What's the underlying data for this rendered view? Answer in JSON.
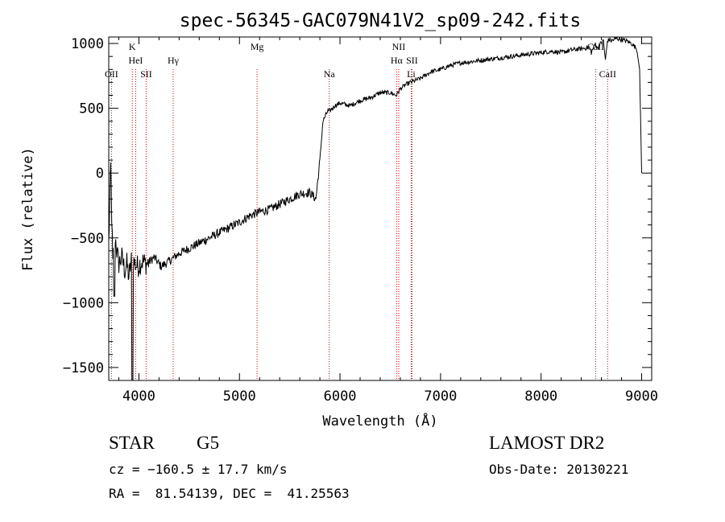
{
  "chart_data": {
    "type": "line",
    "title": "spec-56345-GAC079N41V2_sp09-242.fits",
    "xlabel": "Wavelength (Å)",
    "ylabel": "Flux (relative)",
    "xlim": [
      3700,
      9100
    ],
    "ylim": [
      -1600,
      1050
    ],
    "xticks": [
      4000,
      5000,
      6000,
      7000,
      8000,
      9000
    ],
    "yticks": [
      -1500,
      -1000,
      -500,
      0,
      500,
      1000
    ],
    "xtick_labels": [
      "4000",
      "5000",
      "6000",
      "7000",
      "8000",
      "9000"
    ],
    "ytick_labels": [
      "−1500",
      "−1000",
      "−500",
      "0",
      "500",
      "1000"
    ],
    "grid": false,
    "line_color": "#000000",
    "marker_color": "#cc0000",
    "series": [
      {
        "x": [
          3700,
          3720,
          3740,
          3760,
          3780,
          3800,
          3830,
          3860,
          3880,
          3900,
          3930,
          3960,
          3990,
          4030,
          4080,
          4150,
          4220,
          4300,
          4400,
          4500,
          4600,
          4700,
          4800,
          4900,
          5000,
          5100,
          5200,
          5300,
          5400,
          5500,
          5600,
          5700,
          5760,
          5800,
          5830,
          5860,
          5880,
          5900,
          5950,
          6000,
          6100,
          6200,
          6300,
          6400,
          6500,
          6560,
          6600,
          6650,
          6700,
          6800,
          6900,
          7000,
          7100,
          7200,
          7300,
          7400,
          7500,
          7600,
          7700,
          7800,
          7900,
          8000,
          8100,
          8200,
          8300,
          8400,
          8480,
          8500,
          8540,
          8560,
          8580,
          8620,
          8640,
          8660,
          8680,
          8700,
          8750,
          8800,
          8850,
          8900,
          8950,
          8980,
          9000
        ],
        "y": [
          -550,
          50,
          -700,
          -450,
          -600,
          -700,
          -650,
          -750,
          -700,
          -800,
          -650,
          -700,
          -720,
          -680,
          -700,
          -650,
          -720,
          -680,
          -620,
          -580,
          -540,
          -500,
          -460,
          -420,
          -380,
          -330,
          -300,
          -280,
          -240,
          -200,
          -160,
          -150,
          -200,
          100,
          400,
          450,
          480,
          480,
          520,
          540,
          520,
          560,
          580,
          620,
          620,
          600,
          650,
          680,
          700,
          730,
          780,
          800,
          830,
          850,
          860,
          870,
          880,
          890,
          900,
          910,
          920,
          930,
          940,
          930,
          950,
          960,
          970,
          930,
          1000,
          960,
          990,
          1020,
          870,
          1020,
          1030,
          1020,
          1040,
          1030,
          1020,
          1000,
          960,
          800,
          0
        ]
      }
    ],
    "markers": [
      {
        "x": 3727,
        "label": "OII",
        "row": 2
      },
      {
        "x": 3934,
        "label": "K",
        "row": 0
      },
      {
        "x": 3968,
        "label": "HeI",
        "row": 1
      },
      {
        "x": 4072,
        "label": "SII",
        "row": 2
      },
      {
        "x": 4341,
        "label": "Hγ",
        "row": 1
      },
      {
        "x": 5175,
        "label": "Mg",
        "row": 0
      },
      {
        "x": 5893,
        "label": "Na",
        "row": 2
      },
      {
        "x": 6584,
        "label": "NII",
        "row": 0
      },
      {
        "x": 6563,
        "label": "Hα",
        "row": 1
      },
      {
        "x": 6716,
        "label": "SII",
        "row": 1
      },
      {
        "x": 6708,
        "label": "Li",
        "row": 2
      },
      {
        "x": 8542,
        "label": "CaII",
        "row": 0
      },
      {
        "x": 8662,
        "label": "CaII",
        "row": 2
      }
    ]
  },
  "info": {
    "objtype": "STAR",
    "subclass": "G5",
    "survey": "LAMOST DR2",
    "cz": "cz = −160.5 ± 17.7 km/s",
    "obsdate": "Obs-Date: 20130221",
    "radec": "RA =  81.54139, DEC =  41.25563"
  }
}
